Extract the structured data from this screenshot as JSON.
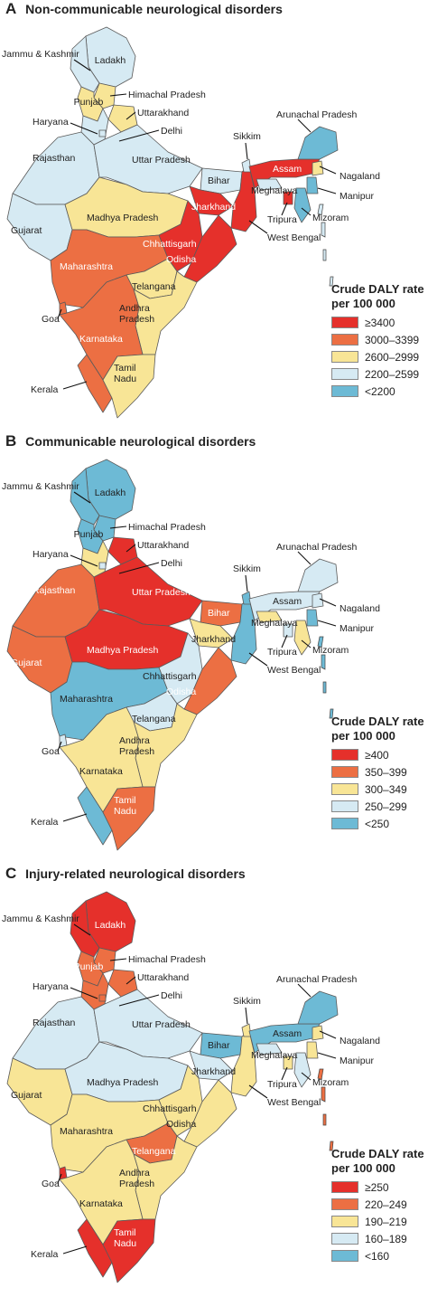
{
  "colors": {
    "c1": "#e5302b",
    "c2": "#ec6f43",
    "c3": "#f8e596",
    "c4": "#d6eaf3",
    "c5": "#6dbad5"
  },
  "states": {
    "jk": "Jammu & Kashmir",
    "ladakh": "Ladakh",
    "hp": "Himachal Pradesh",
    "punjab": "Punjab",
    "uk": "Uttarakhand",
    "haryana": "Haryana",
    "delhi": "Delhi",
    "arunachal": "Arunachal Pradesh",
    "sikkim": "Sikkim",
    "assam": "Assam",
    "rajasthan": "Rajasthan",
    "up": "Uttar Pradesh",
    "bihar": "Bihar",
    "nagaland": "Nagaland",
    "meghalaya": "Meghalaya",
    "manipur": "Manipur",
    "gujarat": "Gujarat",
    "mp": "Madhya Pradesh",
    "jharkhand": "Jharkhand",
    "tripura": "Tripura",
    "mizoram": "Mizoram",
    "wb": "West Bengal",
    "chhattisgarh": "Chhattisgarh",
    "odisha": "Odisha",
    "maharashtra": "Maharashtra",
    "telangana": "Telangana",
    "ap": "Andhra\nPradesh",
    "goa": "Goa",
    "karnataka": "Karnataka",
    "tn": "Tamil\nNadu",
    "kerala": "Kerala"
  },
  "panels": [
    {
      "letter": "A",
      "title": "Non-communicable neurological disorders",
      "legend_title": "Crude DALY rate\nper 100 000",
      "legend": [
        "≥3400",
        "3000–3399",
        "2600–2999",
        "2200–2599",
        "<2200"
      ],
      "fills": {
        "jk": "c4",
        "ladakh": "c4",
        "hp": "c3",
        "punjab": "c3",
        "uk": "c3",
        "haryana": "c4",
        "delhi": "c4",
        "rajasthan": "c4",
        "up": "c4",
        "bihar": "c4",
        "sikkim": "c4",
        "arunachal": "c5",
        "assam": "c1",
        "nagaland": "c3",
        "meghalaya": "c4",
        "manipur": "c5",
        "mizoram": "c5",
        "tripura": "c1",
        "wb": "c1",
        "jharkhand": "c1",
        "gujarat": "c4",
        "mp": "c3",
        "chhattisgarh": "c1",
        "odisha": "c1",
        "maharashtra": "c2",
        "telangana": "c3",
        "ap": "c3",
        "goa": "c2",
        "karnataka": "c2",
        "tn": "c3",
        "kerala": "c2",
        "islands": "c4"
      }
    },
    {
      "letter": "B",
      "title": "Communicable neurological disorders",
      "legend_title": "Crude DALY rate\nper 100 000",
      "legend": [
        "≥400",
        "350–399",
        "300–349",
        "250–299",
        "<250"
      ],
      "fills": {
        "jk": "c5",
        "ladakh": "c5",
        "hp": "c5",
        "punjab": "c5",
        "uk": "c1",
        "haryana": "c3",
        "delhi": "c4",
        "rajasthan": "c2",
        "up": "c1",
        "bihar": "c2",
        "sikkim": "c5",
        "arunachal": "c4",
        "assam": "c4",
        "nagaland": "c4",
        "meghalaya": "c3",
        "manipur": "c5",
        "mizoram": "c3",
        "tripura": "c4",
        "wb": "c5",
        "jharkhand": "c3",
        "gujarat": "c2",
        "mp": "c1",
        "chhattisgarh": "c4",
        "odisha": "c2",
        "maharashtra": "c5",
        "telangana": "c4",
        "ap": "c3",
        "goa": "c4",
        "karnataka": "c3",
        "tn": "c2",
        "kerala": "c5",
        "islands": "c5"
      }
    },
    {
      "letter": "C",
      "title": "Injury-related neurological disorders",
      "legend_title": "Crude DALY rate\nper 100 000",
      "legend": [
        "≥250",
        "220–249",
        "190–219",
        "160–189",
        "<160"
      ],
      "fills": {
        "jk": "c1",
        "ladakh": "c1",
        "hp": "c2",
        "punjab": "c2",
        "uk": "c2",
        "haryana": "c2",
        "delhi": "c2",
        "rajasthan": "c4",
        "up": "c4",
        "bihar": "c5",
        "sikkim": "c3",
        "arunachal": "c5",
        "assam": "c5",
        "nagaland": "c3",
        "meghalaya": "c4",
        "manipur": "c3",
        "mizoram": "c4",
        "tripura": "c3",
        "wb": "c3",
        "jharkhand": "c4",
        "gujarat": "c3",
        "mp": "c4",
        "chhattisgarh": "c3",
        "odisha": "c3",
        "maharashtra": "c3",
        "telangana": "c2",
        "ap": "c3",
        "goa": "c1",
        "karnataka": "c3",
        "tn": "c1",
        "kerala": "c1",
        "islands": "c2"
      }
    }
  ]
}
